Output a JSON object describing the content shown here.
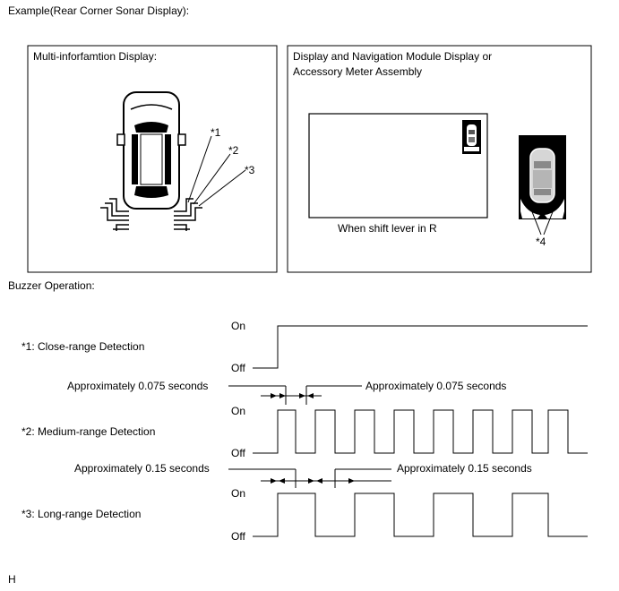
{
  "header": {
    "title": "Example(Rear Corner Sonar Display):"
  },
  "panel_left": {
    "title": "Multi-inforfamtion Display:",
    "callouts": [
      "*1",
      "*2",
      "*3"
    ]
  },
  "panel_right": {
    "title_line1": "Display and Navigation Module Display or",
    "title_line2": "Accessory Meter Assembly",
    "caption": "When shift lever in R",
    "callout": "*4"
  },
  "buzzer": {
    "heading": "Buzzer Operation:",
    "rows": [
      {
        "label": "*1: Close-range Detection",
        "on": "On",
        "off": "Off"
      },
      {
        "label": "*2: Medium-range Detection",
        "on": "On",
        "off": "Off"
      },
      {
        "label": "*3: Long-range Detection",
        "on": "On",
        "off": "Off"
      }
    ],
    "timings": {
      "medium_left": "Approximately 0.075 seconds",
      "medium_right": "Approximately 0.075 seconds",
      "long_left": "Approximately 0.15 seconds",
      "long_right": "Approximately 0.15 seconds"
    }
  },
  "footer": {
    "code": "H"
  }
}
